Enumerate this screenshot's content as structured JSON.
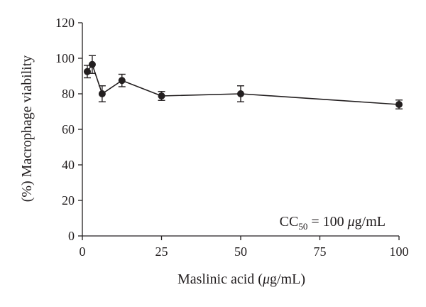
{
  "chart_data": {
    "type": "line",
    "xlabel": {
      "pre": "Maslinic acid (",
      "greek": "μ",
      "post": "g/mL)"
    },
    "ylabel": "(%) Macrophage viability",
    "xlim": [
      0,
      100
    ],
    "ylim": [
      0,
      120
    ],
    "xticks": [
      0,
      25,
      50,
      75,
      100
    ],
    "yticks": [
      0,
      20,
      40,
      60,
      80,
      100,
      120
    ],
    "grid": false,
    "series": [
      {
        "x": [
          1.56,
          3.125,
          6.25,
          12.5,
          25,
          50,
          100
        ],
        "y": [
          92.5,
          96.5,
          80.0,
          87.5,
          78.8,
          80.0,
          74.0
        ],
        "yerr": [
          3.5,
          5.0,
          4.5,
          3.5,
          2.5,
          4.5,
          2.5
        ]
      }
    ],
    "annotation": {
      "base": "CC",
      "sub": "50",
      "mid": " = 100 ",
      "greek": "μ",
      "post": "g/mL"
    }
  }
}
